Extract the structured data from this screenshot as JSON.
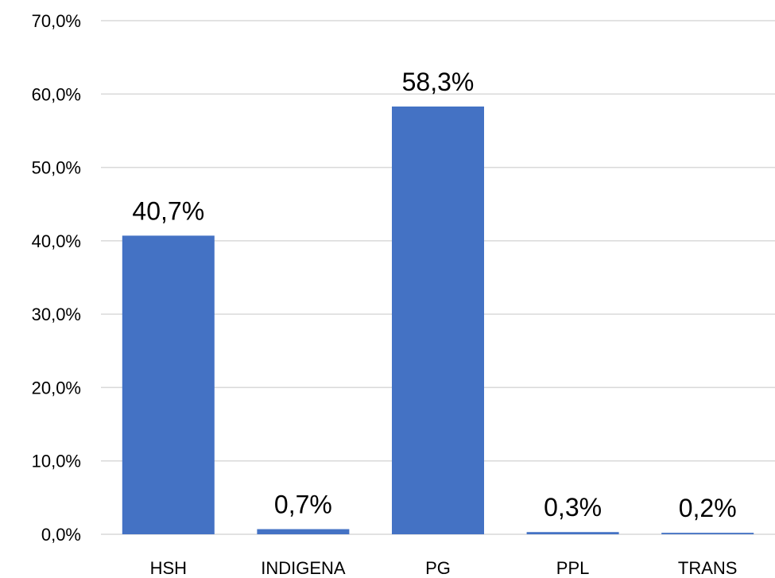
{
  "chart_data": {
    "type": "bar",
    "categories": [
      "HSH",
      "INDIGENA",
      "PG",
      "PPL",
      "TRANS"
    ],
    "values": [
      40.7,
      0.7,
      58.3,
      0.3,
      0.2
    ],
    "data_labels": [
      "40,7%",
      "0,7%",
      "58,3%",
      "0,3%",
      "0,2%"
    ],
    "y_ticks": [
      0,
      10,
      20,
      30,
      40,
      50,
      60,
      70
    ],
    "y_tick_labels": [
      "0,0%",
      "10,0%",
      "20,0%",
      "30,0%",
      "40,0%",
      "50,0%",
      "60,0%",
      "70,0%"
    ],
    "ylim": [
      0,
      70
    ],
    "title": "",
    "xlabel": "",
    "ylabel": "",
    "grid": true,
    "legend": "none",
    "bar_color": "#4472c4"
  }
}
